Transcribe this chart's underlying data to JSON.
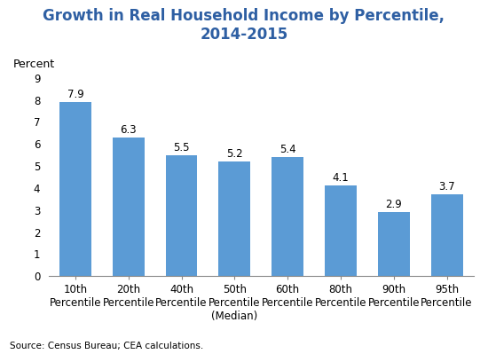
{
  "title": "Growth in Real Household Income by Percentile,\n2014-2015",
  "ylabel": "Percent",
  "categories": [
    "10th\nPercentile",
    "20th\nPercentile",
    "40th\nPercentile",
    "50th\nPercentile\n(Median)",
    "60th\nPercentile",
    "80th\nPercentile",
    "90th\nPercentile",
    "95th\nPercentile"
  ],
  "values": [
    7.9,
    6.3,
    5.5,
    5.2,
    5.4,
    4.1,
    2.9,
    3.7
  ],
  "bar_color": "#5B9BD5",
  "title_color": "#2E5FA3",
  "ylim": [
    0,
    9
  ],
  "yticks": [
    0,
    1,
    2,
    3,
    4,
    5,
    6,
    7,
    8,
    9
  ],
  "source_text": "Source: Census Bureau; CEA calculations.",
  "title_fontsize": 12,
  "label_fontsize": 9,
  "tick_fontsize": 8.5,
  "source_fontsize": 7.5,
  "bar_value_fontsize": 8.5,
  "background_color": "#ffffff"
}
